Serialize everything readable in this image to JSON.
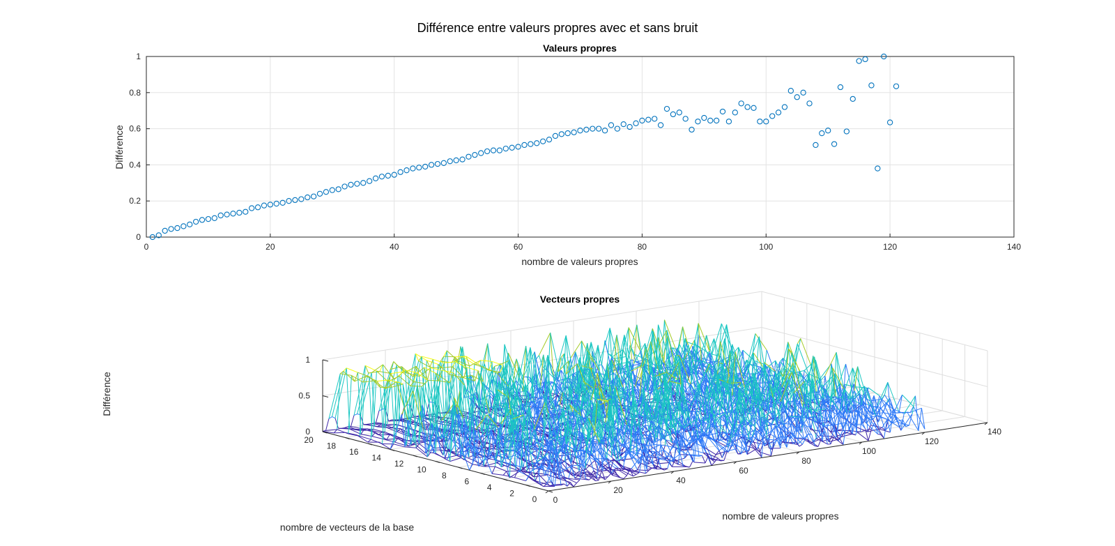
{
  "figure_title": "Différence entre valeurs propres avec et sans bruit",
  "chart_data": [
    {
      "type": "scatter",
      "title": "Valeurs propres",
      "xlabel": "nombre de valeurs propres",
      "ylabel": "Différence",
      "xlim": [
        0,
        140
      ],
      "ylim": [
        0,
        1
      ],
      "xticks": [
        "0",
        "20",
        "40",
        "60",
        "80",
        "100",
        "120",
        "140"
      ],
      "yticks": [
        "0",
        "0.2",
        "0.4",
        "0.6",
        "0.8",
        "1"
      ],
      "grid": true,
      "marker": "open-circle",
      "color": "#0072BD",
      "x": [
        1,
        2,
        3,
        4,
        5,
        6,
        7,
        8,
        9,
        10,
        11,
        12,
        13,
        14,
        15,
        16,
        17,
        18,
        19,
        20,
        21,
        22,
        23,
        24,
        25,
        26,
        27,
        28,
        29,
        30,
        31,
        32,
        33,
        34,
        35,
        36,
        37,
        38,
        39,
        40,
        41,
        42,
        43,
        44,
        45,
        46,
        47,
        48,
        49,
        50,
        51,
        52,
        53,
        54,
        55,
        56,
        57,
        58,
        59,
        60,
        61,
        62,
        63,
        64,
        65,
        66,
        67,
        68,
        69,
        70,
        71,
        72,
        73,
        74,
        75,
        76,
        77,
        78,
        79,
        80,
        81,
        82,
        83,
        84,
        85,
        86,
        87,
        88,
        89,
        90,
        91,
        92,
        93,
        94,
        95,
        96,
        97,
        98,
        99,
        100,
        101,
        102,
        103,
        104,
        105,
        106,
        107,
        108,
        109,
        110,
        111,
        112,
        113,
        114,
        115,
        116,
        117,
        118,
        119,
        120,
        121
      ],
      "y": [
        0.0,
        0.01,
        0.035,
        0.045,
        0.05,
        0.06,
        0.07,
        0.085,
        0.095,
        0.1,
        0.105,
        0.12,
        0.125,
        0.13,
        0.135,
        0.14,
        0.16,
        0.165,
        0.175,
        0.18,
        0.185,
        0.19,
        0.2,
        0.205,
        0.21,
        0.22,
        0.225,
        0.24,
        0.25,
        0.26,
        0.265,
        0.28,
        0.29,
        0.295,
        0.3,
        0.31,
        0.325,
        0.335,
        0.34,
        0.345,
        0.36,
        0.37,
        0.38,
        0.385,
        0.39,
        0.4,
        0.405,
        0.41,
        0.42,
        0.425,
        0.43,
        0.445,
        0.455,
        0.465,
        0.475,
        0.48,
        0.48,
        0.49,
        0.495,
        0.5,
        0.51,
        0.515,
        0.52,
        0.53,
        0.54,
        0.56,
        0.57,
        0.575,
        0.58,
        0.59,
        0.595,
        0.6,
        0.6,
        0.59,
        0.62,
        0.6,
        0.625,
        0.61,
        0.63,
        0.645,
        0.65,
        0.655,
        0.62,
        0.71,
        0.68,
        0.69,
        0.655,
        0.595,
        0.64,
        0.66,
        0.645,
        0.645,
        0.695,
        0.64,
        0.69,
        0.74,
        0.72,
        0.715,
        0.64,
        0.64,
        0.67,
        0.69,
        0.72,
        0.81,
        0.775,
        0.8,
        0.74,
        0.51,
        0.575,
        0.59,
        0.515,
        0.83,
        0.585,
        0.765,
        0.975,
        0.985,
        0.84,
        0.38,
        1.0,
        0.635,
        0.835
      ]
    },
    {
      "type": "mesh3d",
      "title": "Vecteurs propres",
      "xlabel": "nombre de vecteurs de la base",
      "ylabel": "nombre de valeurs propres",
      "zlabel": "Différence",
      "xlim": [
        0,
        20
      ],
      "ylim": [
        0,
        140
      ],
      "zlim": [
        0,
        1
      ],
      "xticks": [
        "0",
        "2",
        "4",
        "6",
        "8",
        "10",
        "12",
        "14",
        "16",
        "18",
        "20"
      ],
      "yticks": [
        "0",
        "20",
        "40",
        "60",
        "80",
        "100",
        "120",
        "140"
      ],
      "zticks": [
        "0",
        "0.5",
        "1"
      ],
      "grid": true,
      "colormap": [
        "#3D26A8",
        "#2F7AF7",
        "#1AC7C2",
        "#A5CB26",
        "#F9FB0E"
      ]
    }
  ]
}
